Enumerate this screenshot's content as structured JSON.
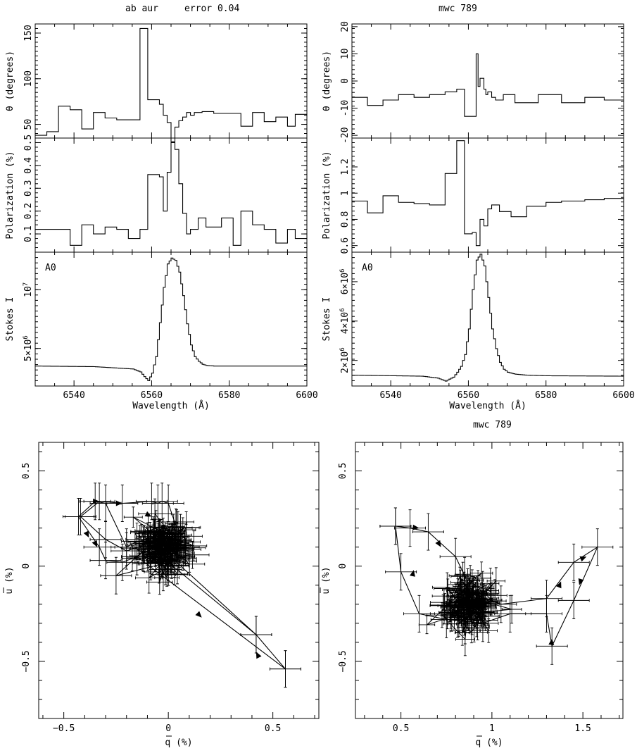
{
  "figure": {
    "titles": [
      "ab aur",
      "error 0.04",
      "mwc 789",
      "mwc 789"
    ]
  },
  "chart_data": [
    {
      "id": "abaur-theta",
      "type": "line",
      "step": true,
      "title": "ab aur      error 0.04",
      "ylabel": "θ (degrees)",
      "xlim": [
        6530,
        6600
      ],
      "ylim": [
        35,
        160
      ],
      "yticks": [
        50,
        100,
        150
      ],
      "x": [
        6530,
        6533,
        6536,
        6539,
        6542,
        6545,
        6548,
        6551,
        6554,
        6557,
        6559,
        6562,
        6563,
        6564,
        6565,
        6566,
        6567,
        6568,
        6569,
        6570,
        6571,
        6573,
        6576,
        6580,
        6583,
        6586,
        6589,
        6592,
        6595,
        6597,
        6600
      ],
      "y": [
        38,
        42,
        70,
        66,
        45,
        63,
        57,
        55,
        55,
        155,
        77,
        72,
        60,
        52,
        31,
        47,
        54,
        58,
        63,
        60,
        63,
        64,
        62,
        62,
        48,
        63,
        53,
        58,
        48,
        61,
        61
      ]
    },
    {
      "id": "abaur-pol",
      "type": "line",
      "step": true,
      "ylabel": "Polarization (%)",
      "xlim": [
        6530,
        6600
      ],
      "ylim": [
        0.02,
        0.52
      ],
      "yticks": [
        0.1,
        0.2,
        0.3,
        0.4,
        0.5
      ],
      "x": [
        6530,
        6536,
        6539,
        6542,
        6545,
        6548,
        6551,
        6554,
        6557,
        6559,
        6562,
        6563,
        6564,
        6565,
        6566,
        6567,
        6568,
        6569,
        6570,
        6572,
        6574,
        6578,
        6581,
        6583,
        6586,
        6589,
        6592,
        6595,
        6597,
        6600
      ],
      "y": [
        0.12,
        0.12,
        0.05,
        0.14,
        0.1,
        0.13,
        0.12,
        0.08,
        0.12,
        0.36,
        0.35,
        0.2,
        0.37,
        0.5,
        0.47,
        0.32,
        0.19,
        0.1,
        0.12,
        0.17,
        0.13,
        0.17,
        0.05,
        0.2,
        0.14,
        0.12,
        0.06,
        0.12,
        0.08,
        0.08
      ]
    },
    {
      "id": "abaur-stokes",
      "type": "line",
      "label": "A0",
      "xlabel": "Wavelength (Å)",
      "ylabel": "Stokes I",
      "xlim": [
        6530,
        6600
      ],
      "ylim": [
        1800000,
        13200000
      ],
      "xticks": [
        6540,
        6560,
        6580,
        6600
      ],
      "yticks": [
        {
          "v": 5000000,
          "t": "5×10"
        },
        {
          "v": 10000000,
          "t": "10"
        }
      ],
      "ytick_exponents": [
        "6",
        "7"
      ],
      "x": [
        6530,
        6545,
        6555,
        6557,
        6558,
        6559,
        6560,
        6561,
        6562,
        6563,
        6564,
        6565,
        6566,
        6567,
        6568,
        6569,
        6570,
        6571,
        6572,
        6573,
        6574,
        6576,
        6580,
        6600
      ],
      "y": [
        3500000,
        3450000,
        3250000,
        3000000,
        2600000,
        2250000,
        2900000,
        4300000,
        7200000,
        10200000,
        12200000,
        12700000,
        12500000,
        11500000,
        9500000,
        7100000,
        5300000,
        4300000,
        3900000,
        3650000,
        3550000,
        3500000,
        3500000,
        3500000
      ]
    },
    {
      "id": "mwc-theta",
      "type": "line",
      "step": true,
      "title": "mwc 789",
      "ylabel": "θ (degrees)",
      "xlim": [
        6530,
        6600
      ],
      "ylim": [
        -21,
        21
      ],
      "yticks": [
        -20,
        -10,
        0,
        10,
        20
      ],
      "x": [
        6530,
        6534,
        6538,
        6542,
        6546,
        6550,
        6554,
        6557,
        6559,
        6562,
        6562.5,
        6563,
        6564,
        6564.5,
        6565,
        6566,
        6567,
        6569,
        6572,
        6578,
        6584,
        6590,
        6595,
        6600
      ],
      "y": [
        -6,
        -9,
        -7,
        -5,
        -6,
        -5,
        -4,
        -3,
        -13,
        10,
        -2,
        1,
        -3,
        -5,
        -4,
        -6,
        -7,
        -5,
        -8,
        -5,
        -8,
        -6,
        -7,
        -7
      ]
    },
    {
      "id": "mwc-pol",
      "type": "line",
      "step": true,
      "ylabel": "Polarization (%)",
      "xlim": [
        6530,
        6600
      ],
      "ylim": [
        0.55,
        1.42
      ],
      "yticks": [
        0.6,
        0.8,
        1.0,
        1.2
      ],
      "ytick_labels": [
        "0.6",
        "0.8",
        "1",
        "1.2"
      ],
      "x": [
        6530,
        6534,
        6538,
        6542,
        6546,
        6550,
        6554,
        6557,
        6559,
        6561,
        6562,
        6563,
        6564,
        6565,
        6566,
        6568,
        6571,
        6575,
        6580,
        6584,
        6590,
        6595,
        6600
      ],
      "y": [
        0.94,
        0.85,
        0.98,
        0.93,
        0.92,
        0.91,
        1.15,
        1.4,
        0.69,
        0.7,
        0.6,
        0.8,
        0.75,
        0.88,
        0.91,
        0.86,
        0.82,
        0.9,
        0.93,
        0.94,
        0.95,
        0.96,
        0.88
      ]
    },
    {
      "id": "mwc-stokes",
      "type": "line",
      "label": "A0",
      "xlabel": "Wavelength (Å)",
      "ylabel": "Stokes I",
      "xlim": [
        6530,
        6600
      ],
      "ylim": [
        700000,
        7500000
      ],
      "xticks": [
        6540,
        6560,
        6580,
        6600
      ],
      "yticks": [
        {
          "v": 2000000,
          "t": "2×10"
        },
        {
          "v": 4000000,
          "t": "4×10"
        },
        {
          "v": 6000000,
          "t": "6×10"
        }
      ],
      "ytick_exponents": [
        "6",
        "6",
        "6"
      ],
      "x": [
        6530,
        6548,
        6552,
        6554,
        6556,
        6557,
        6558,
        6559,
        6560,
        6561,
        6562,
        6563,
        6564,
        6565,
        6566,
        6567,
        6568,
        6569,
        6570,
        6572,
        6575,
        6580,
        6600
      ],
      "y": [
        1250000,
        1200000,
        1100000,
        950000,
        1150000,
        1400000,
        1700000,
        2300000,
        3600000,
        5600000,
        7100000,
        7400000,
        6800000,
        5200000,
        3600000,
        2600000,
        1900000,
        1550000,
        1400000,
        1300000,
        1250000,
        1220000,
        1200000
      ]
    },
    {
      "id": "abaur-qu",
      "type": "scatter",
      "errorbars": true,
      "xlabel": "q (%)",
      "ylabel": "u (%)",
      "xlim": [
        -0.62,
        0.72
      ],
      "ylim": [
        -0.8,
        0.65
      ],
      "xticks": [
        -0.5,
        0,
        0.5
      ],
      "yticks": [
        -0.5,
        0,
        0.5
      ],
      "xtick_labels": [
        "−0.5",
        "0",
        "0.5"
      ],
      "ytick_labels": [
        "−0.5",
        "0",
        "0.5"
      ],
      "path_q": [
        -0.15,
        -0.2,
        -0.3,
        -0.35,
        -0.43,
        -0.33,
        -0.3,
        -0.22,
        -0.15,
        -0.1,
        -0.06,
        -0.03,
        0.02,
        0.04,
        0.0,
        -0.03,
        -0.05,
        -0.08,
        -0.22,
        -0.33,
        -0.42,
        -0.3,
        -0.2,
        -0.12,
        -0.05,
        -0.02,
        0.01,
        0.42,
        0.56,
        0.42,
        0.0,
        -0.25,
        -0.15,
        0.56
      ],
      "path_u": [
        0.13,
        0.1,
        0.33,
        0.34,
        0.26,
        0.1,
        0.03,
        0.02,
        0.05,
        0.1,
        0.15,
        0.12,
        0.08,
        0.2,
        0.33,
        0.34,
        0.33,
        0.34,
        0.33,
        0.34,
        0.26,
        0.14,
        0.08,
        0.11,
        0.13,
        0.12,
        0.05,
        -0.36,
        -0.54,
        -0.36,
        0.02,
        -0.05,
        0.05,
        -0.54
      ],
      "arrow_q": [
        -0.33,
        -0.22,
        -0.08,
        -0.38,
        -0.05,
        0.16,
        0.42,
        -0.34
      ],
      "arrow_u": [
        0.34,
        0.33,
        0.26,
        0.15,
        0.05,
        -0.27,
        -0.45,
        0.1
      ],
      "arrow_dq": [
        1,
        1,
        1,
        0.5,
        1,
        1,
        -0.5,
        0.5
      ],
      "arrow_du": [
        0,
        0,
        -0.5,
        -1,
        0.3,
        -1,
        1,
        -1
      ],
      "cloud": {
        "q": -0.02,
        "u": 0.1,
        "sq": 0.07,
        "su": 0.07,
        "n": 130,
        "err": 0.08
      }
    },
    {
      "id": "mwc-qu",
      "type": "scatter",
      "errorbars": true,
      "title": "mwc 789",
      "xlabel": "q (%)",
      "ylabel": "u (%)",
      "xlim": [
        0.25,
        1.72
      ],
      "ylim": [
        -0.8,
        0.65
      ],
      "xticks": [
        0.5,
        1.0,
        1.5
      ],
      "yticks": [
        -0.5,
        0,
        0.5
      ],
      "xtick_labels": [
        "0.5",
        "1",
        "1.5"
      ],
      "ytick_labels": [
        "−0.5",
        "0",
        "0.5"
      ],
      "path_q": [
        0.47,
        0.55,
        0.65,
        0.8,
        0.85,
        0.9,
        1.05,
        1.3,
        1.45,
        1.58,
        1.45,
        1.33,
        1.3,
        1.1,
        0.95,
        0.75,
        0.6,
        0.5,
        0.47
      ],
      "path_u": [
        0.21,
        0.2,
        0.18,
        0.05,
        -0.05,
        -0.15,
        -0.2,
        -0.17,
        0.02,
        0.1,
        -0.18,
        -0.42,
        -0.25,
        -0.25,
        -0.3,
        -0.28,
        -0.25,
        -0.03,
        0.21
      ],
      "arrow_q": [
        0.6,
        0.72,
        1.38,
        1.52,
        1.48,
        1.33,
        0.57,
        0.78
      ],
      "arrow_u": [
        0.2,
        0.1,
        -0.08,
        0.05,
        -0.1,
        -0.38,
        -0.02,
        -0.25
      ],
      "arrow_dq": [
        1,
        0.6,
        0.4,
        1,
        -0.3,
        0.1,
        0.2,
        -1
      ],
      "arrow_du": [
        -0.1,
        -1,
        1,
        0.4,
        -1,
        1,
        1,
        -0.2
      ],
      "cloud": {
        "q": 0.88,
        "u": -0.2,
        "sq": 0.07,
        "su": 0.07,
        "n": 130,
        "err": 0.08
      }
    }
  ]
}
